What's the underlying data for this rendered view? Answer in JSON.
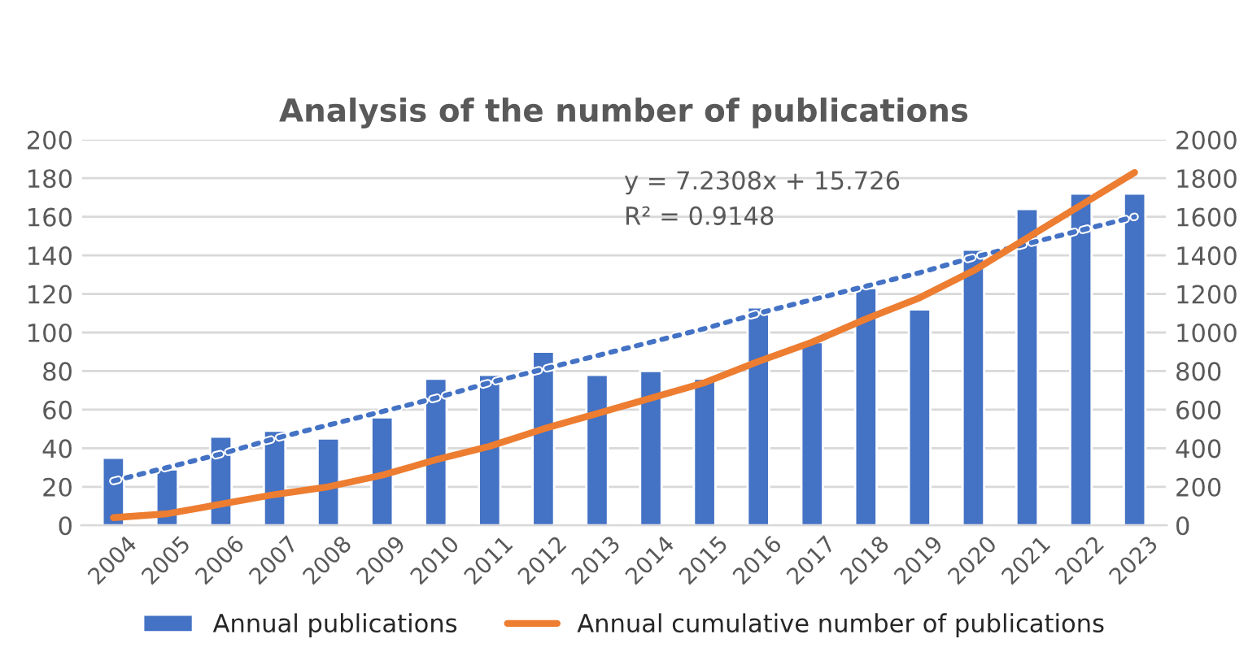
{
  "chart_data": {
    "type": "bar",
    "title": "Analysis of the number of publications",
    "categories": [
      "2004",
      "2005",
      "2006",
      "2007",
      "2008",
      "2009",
      "2010",
      "2011",
      "2012",
      "2013",
      "2014",
      "2015",
      "2016",
      "2017",
      "2018",
      "2019",
      "2020",
      "2021",
      "2022",
      "2023"
    ],
    "series": [
      {
        "name": "Annual publications",
        "color": "#4472c4",
        "values": [
          35,
          29,
          46,
          49,
          45,
          56,
          76,
          78,
          90,
          78,
          80,
          76,
          113,
          95,
          123,
          112,
          143,
          164,
          172,
          172
        ]
      },
      {
        "name": "Annual cumulative number of publications",
        "type": "line",
        "axis": "y2",
        "color": "#ed7d31",
        "values": [
          40,
          60,
          110,
          160,
          200,
          260,
          340,
          410,
          500,
          580,
          660,
          740,
          850,
          950,
          1070,
          1180,
          1320,
          1490,
          1660,
          1830
        ]
      },
      {
        "type": "line",
        "color": "#4472c4",
        "line_style": "dotted",
        "values": [
          23,
          30,
          37,
          45,
          52,
          59,
          66,
          74,
          81,
          88,
          95,
          102,
          110,
          117,
          124,
          131,
          139,
          146,
          153,
          160
        ]
      }
    ],
    "ylim": [
      0,
      200
    ],
    "yticks": [
      0,
      20,
      40,
      60,
      80,
      100,
      120,
      140,
      160,
      180,
      200
    ],
    "y2lim": [
      0,
      2000
    ],
    "y2ticks": [
      0,
      200,
      400,
      600,
      800,
      1000,
      1200,
      1400,
      1600,
      1800,
      2000
    ],
    "grid": "y",
    "legend": "bottom",
    "annotations": [
      "y = 7.2308x + 15.726\nR² = 0.9148"
    ]
  }
}
